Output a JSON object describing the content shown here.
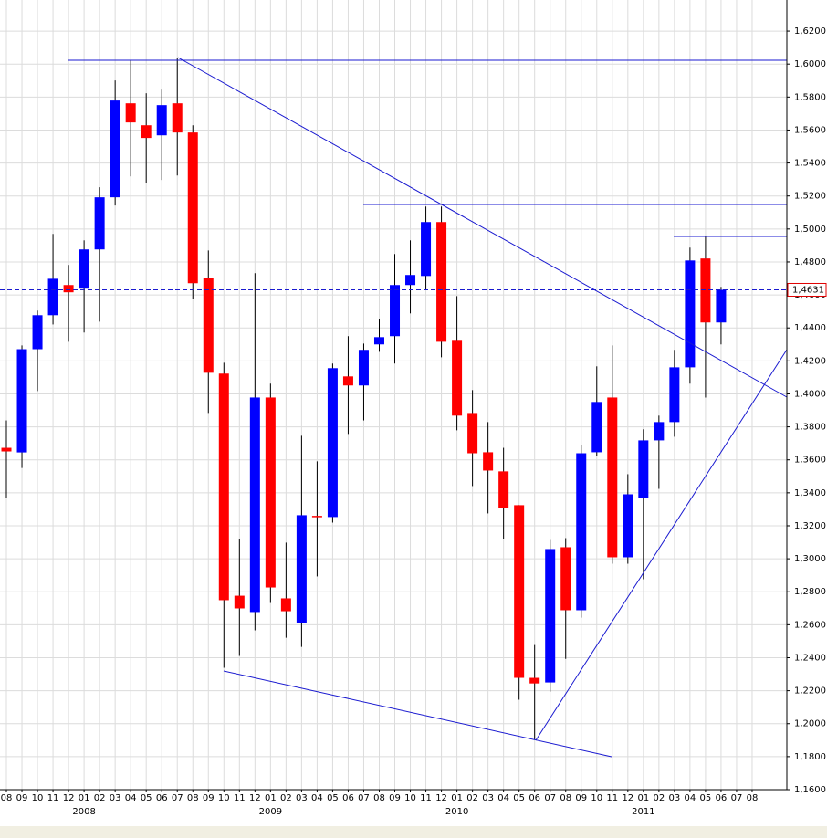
{
  "chart_data": {
    "type": "candlestick",
    "categories": [
      "08",
      "09",
      "10",
      "11",
      "12",
      "01",
      "02",
      "03",
      "04",
      "05",
      "06",
      "07",
      "08",
      "09",
      "10",
      "11",
      "12",
      "01",
      "02",
      "03",
      "04",
      "05",
      "06",
      "07",
      "08",
      "09",
      "10",
      "11",
      "12",
      "01",
      "02",
      "03",
      "04",
      "05",
      "06",
      "07",
      "08",
      "09",
      "10",
      "11",
      "12",
      "01",
      "02",
      "03",
      "04",
      "05",
      "06",
      "07",
      "08"
    ],
    "year_labels": [
      null,
      null,
      null,
      null,
      null,
      "2008",
      null,
      null,
      null,
      null,
      null,
      null,
      null,
      null,
      null,
      null,
      null,
      "2009",
      null,
      null,
      null,
      null,
      null,
      null,
      null,
      null,
      null,
      null,
      null,
      "2010",
      null,
      null,
      null,
      null,
      null,
      null,
      null,
      null,
      null,
      null,
      null,
      "2011",
      null,
      null,
      null,
      null,
      null,
      null,
      null
    ],
    "open": [
      1.3673,
      1.3645,
      1.4271,
      1.4477,
      1.466,
      1.4638,
      1.4876,
      1.5192,
      1.5762,
      1.5629,
      1.5568,
      1.5762,
      1.5585,
      1.4704,
      1.4123,
      1.2776,
      1.2677,
      1.3978,
      1.276,
      1.261,
      1.326,
      1.3253,
      1.4106,
      1.4051,
      1.43,
      1.435,
      1.466,
      1.4715,
      1.5042,
      1.4322,
      1.3884,
      1.3646,
      1.353,
      1.3325,
      1.2278,
      1.225,
      1.307,
      1.2688,
      1.3646,
      1.3978,
      1.3009,
      1.3369,
      1.3718,
      1.3829,
      1.4161,
      1.4821,
      1.4433,
      null,
      null
    ],
    "high": [
      1.3839,
      1.4294,
      1.4505,
      1.497,
      1.4782,
      1.4931,
      1.5253,
      1.5901,
      1.6023,
      1.5823,
      1.5845,
      1.6039,
      1.5629,
      1.487,
      1.4189,
      1.312,
      1.4732,
      1.4062,
      1.3098,
      1.3746,
      1.3591,
      1.4184,
      1.435,
      1.4305,
      1.4455,
      1.4848,
      1.4931,
      1.5136,
      1.5136,
      1.4593,
      1.4023,
      1.3829,
      1.3673,
      1.3325,
      1.2477,
      1.3114,
      1.3125,
      1.369,
      1.4167,
      1.4294,
      1.3513,
      1.3785,
      1.3868,
      1.4267,
      1.4887,
      1.4954,
      1.4649,
      null,
      null
    ],
    "low": [
      1.3368,
      1.3551,
      1.4017,
      1.4421,
      1.4316,
      1.4372,
      1.4438,
      1.5142,
      1.5319,
      1.528,
      1.5297,
      1.5324,
      1.4577,
      1.3884,
      1.2339,
      1.2411,
      1.2566,
      1.2732,
      1.2521,
      1.2466,
      1.2893,
      1.3219,
      1.3757,
      1.3839,
      1.4255,
      1.4184,
      1.4488,
      1.4632,
      1.4222,
      1.3779,
      1.3441,
      1.3275,
      1.312,
      1.2145,
      1.1901,
      1.2194,
      1.2393,
      1.2643,
      1.3624,
      1.297,
      1.297,
      1.2876,
      1.3424,
      1.374,
      1.4062,
      1.3978,
      1.43,
      null,
      null
    ],
    "close": [
      1.3651,
      1.4271,
      1.4477,
      1.4698,
      1.4616,
      1.4876,
      1.5192,
      1.5779,
      1.5646,
      1.5552,
      1.5751,
      1.5585,
      1.4671,
      1.4128,
      1.2749,
      1.2699,
      1.3978,
      1.2826,
      1.2682,
      1.3264,
      1.3252,
      1.4156,
      1.4051,
      1.4267,
      1.4344,
      1.466,
      1.4721,
      1.5042,
      1.4316,
      1.3868,
      1.364,
      1.3535,
      1.3308,
      1.2278,
      1.2244,
      1.3059,
      1.2688,
      1.364,
      1.3951,
      1.3009,
      1.3391,
      1.3718,
      1.3829,
      1.4161,
      1.4809,
      1.4433,
      1.4631,
      null,
      null
    ],
    "up_color": "#0000ff",
    "down_color": "#ff0000",
    "ylim": [
      1.16,
      1.63
    ],
    "yticks": [
      {
        "value": 1.16,
        "label": "1,1600"
      },
      {
        "value": 1.18,
        "label": "1,1800"
      },
      {
        "value": 1.2,
        "label": "1,2000"
      },
      {
        "value": 1.22,
        "label": "1,2200"
      },
      {
        "value": 1.24,
        "label": "1,2400"
      },
      {
        "value": 1.26,
        "label": "1,2600"
      },
      {
        "value": 1.28,
        "label": "1,2800"
      },
      {
        "value": 1.3,
        "label": "1,3000"
      },
      {
        "value": 1.32,
        "label": "1,3200"
      },
      {
        "value": 1.34,
        "label": "1,3400"
      },
      {
        "value": 1.36,
        "label": "1,3600"
      },
      {
        "value": 1.38,
        "label": "1,3800"
      },
      {
        "value": 1.4,
        "label": "1,4000"
      },
      {
        "value": 1.42,
        "label": "1,4200"
      },
      {
        "value": 1.44,
        "label": "1,4400"
      },
      {
        "value": 1.46,
        "label": "1,4600"
      },
      {
        "value": 1.48,
        "label": "1,4800"
      },
      {
        "value": 1.5,
        "label": "1,5000"
      },
      {
        "value": 1.52,
        "label": "1,5200"
      },
      {
        "value": 1.54,
        "label": "1,5400"
      },
      {
        "value": 1.56,
        "label": "1,5600"
      },
      {
        "value": 1.58,
        "label": "1,5800"
      },
      {
        "value": 1.6,
        "label": "1,6000"
      },
      {
        "value": 1.62,
        "label": "1,6200"
      }
    ],
    "last_price": {
      "value": 1.4631,
      "label": "1,4631"
    },
    "grid": true
  }
}
